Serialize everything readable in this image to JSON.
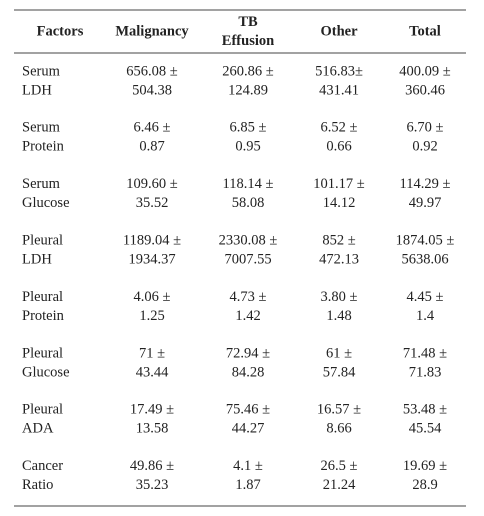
{
  "table": {
    "header": [
      [
        "Factors"
      ],
      [
        "Malignancy"
      ],
      [
        "TB",
        "Effusion"
      ],
      [
        "Other"
      ],
      [
        "Total"
      ]
    ],
    "rows": [
      [
        [
          "Serum",
          "LDH"
        ],
        [
          "656.08 ±",
          "504.38"
        ],
        [
          "260.86 ±",
          "124.89"
        ],
        [
          "516.83±",
          "431.41"
        ],
        [
          "400.09 ±",
          "360.46"
        ]
      ],
      [
        [
          "Serum",
          "Protein"
        ],
        [
          "6.46 ±",
          "0.87"
        ],
        [
          "6.85 ±",
          "0.95"
        ],
        [
          "6.52 ±",
          "0.66"
        ],
        [
          "6.70 ±",
          "0.92"
        ]
      ],
      [
        [
          "Serum",
          "Glucose"
        ],
        [
          "109.60 ±",
          "35.52"
        ],
        [
          "118.14 ±",
          "58.08"
        ],
        [
          "101.17 ±",
          "14.12"
        ],
        [
          "114.29 ±",
          "49.97"
        ]
      ],
      [
        [
          "Pleural",
          "LDH"
        ],
        [
          "1189.04 ±",
          "1934.37"
        ],
        [
          "2330.08 ±",
          "7007.55"
        ],
        [
          "852 ±",
          "472.13"
        ],
        [
          "1874.05 ±",
          "5638.06"
        ]
      ],
      [
        [
          "Pleural",
          "Protein"
        ],
        [
          "4.06 ±",
          "1.25"
        ],
        [
          "4.73 ±",
          "1.42"
        ],
        [
          "3.80 ±",
          "1.48"
        ],
        [
          "4.45 ±",
          "1.4"
        ]
      ],
      [
        [
          "Pleural",
          "Glucose"
        ],
        [
          "71 ±",
          "43.44"
        ],
        [
          "72.94 ±",
          "84.28"
        ],
        [
          "61 ±",
          "57.84"
        ],
        [
          "71.48 ±",
          "71.83"
        ]
      ],
      [
        [
          "Pleural",
          "ADA"
        ],
        [
          "17.49 ±",
          "13.58"
        ],
        [
          "75.46 ±",
          "44.27"
        ],
        [
          "16.57 ±",
          "8.66"
        ],
        [
          "53.48 ±",
          "45.54"
        ]
      ],
      [
        [
          "Cancer",
          "Ratio"
        ],
        [
          "49.86 ±",
          "35.23"
        ],
        [
          "4.1 ±",
          "1.87"
        ],
        [
          "26.5 ±",
          "21.24"
        ],
        [
          "19.69 ±",
          "28.9"
        ]
      ]
    ]
  }
}
